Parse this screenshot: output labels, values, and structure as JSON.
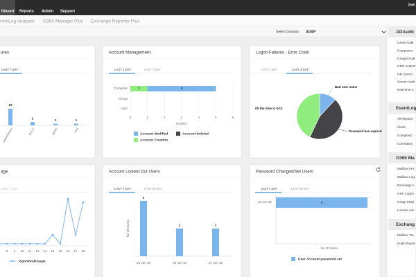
{
  "top_nav": {
    "tabs": [
      "hboard",
      "Reports",
      "Admin",
      "Support"
    ],
    "user": "Jom"
  },
  "products": [
    "ventLog Analyzer",
    "O365 Manager Plus",
    "Exchange Reporter Plus"
  ],
  "domain": {
    "label": "Select Domain :",
    "value": "ADAP"
  },
  "widgets": [
    {
      "type": "bar",
      "title": "ures",
      "tabs": [
        "LAST 7 DAY"
      ],
      "categories": [
        "administrator",
        "BT117",
        "admin",
        "cmd"
      ],
      "values": [
        10,
        2,
        1,
        1
      ],
      "color": "#7cb5ec"
    },
    {
      "type": "hbar-stacked",
      "title": "Account Management",
      "tabs": [
        "LAST 1 DAY",
        "LAST 7 DAY"
      ],
      "categories": [
        "Computer",
        "Group",
        "User"
      ],
      "series": [
        {
          "name": "Account Modified",
          "color": "#7cb5ec",
          "values": [
            4,
            0,
            0
          ]
        },
        {
          "name": "Account Deleted",
          "color": "#434348",
          "values": [
            0,
            0,
            0
          ]
        },
        {
          "name": "Account Creation",
          "color": "#90ed7d",
          "values": [
            1,
            0,
            0
          ]
        }
      ],
      "xlim": [
        0,
        6
      ],
      "xticks": [
        0,
        1,
        2,
        3,
        4,
        5,
        6
      ],
      "xlabel": "COUNT"
    },
    {
      "type": "pie",
      "title": "Logon Failures - Error Code",
      "tabs": [
        "LAST 1 DAY",
        "LAST 2 DAY"
      ],
      "slices": [
        {
          "name": "Bad user name",
          "color": "#7cb5ec",
          "value": 12
        },
        {
          "name": "Passowrd has expired",
          "color": "#434348",
          "value": 45
        },
        {
          "name": "ith the time in DCs",
          "color": "#90ed7d",
          "value": 43
        }
      ]
    },
    {
      "type": "line",
      "title": "age",
      "tabs": [
        "LAST 7 DAY"
      ],
      "categories": [
        "6",
        "7",
        "8",
        "9",
        "10",
        "11",
        "12",
        "13",
        "14",
        "15",
        "16",
        "17",
        "18"
      ],
      "series": [
        {
          "name": "logonPeakUsage",
          "color": "#7cb5ec",
          "values": [
            0,
            0,
            0,
            0,
            0,
            0,
            0,
            0,
            1,
            0,
            5,
            1,
            4.6
          ]
        }
      ]
    },
    {
      "type": "column",
      "title": "Account Locked Out Users",
      "tabs": [
        "LAST 7 DAY",
        "LAST 30 DAY"
      ],
      "categories": [
        "25 Jun 18",
        "26 Jun 18",
        "27 Jun 18"
      ],
      "values": [
        2,
        1,
        1
      ],
      "color": "#7cb5ec",
      "ylabel": "No Of Users"
    },
    {
      "type": "hbar",
      "title": "Password Changed/Set Users",
      "tabs": [
        "LAST 7 DAY",
        "LAST 30 DAY"
      ],
      "categories": [
        "25 Jun 18"
      ],
      "series": [
        {
          "name": "User Account password set",
          "color": "#7cb5ec",
          "values": [
            1
          ]
        }
      ],
      "xlabel": "No.Of Users"
    }
  ],
  "sidebar": [
    {
      "title": "ADAudit",
      "items": [
        "Users Audit",
        "Computers",
        "Groups Audi",
        "GPO Audit R",
        "File Server",
        "Server Audit",
        "Real-time A"
      ]
    },
    {
      "title": "EventLog",
      "items": [
        "All Reports",
        "Alerts",
        "Complianc",
        "Correlation"
      ]
    },
    {
      "title": "O365 Ma",
      "items": [
        "Mailbox Per",
        "Mailbox Log",
        "Exchange A",
        "User Logon",
        "Group Modi",
        "License Acti"
      ]
    },
    {
      "title": "Exchang",
      "items": [
        "Mailbox Tra",
        "Audit Report"
      ]
    }
  ]
}
